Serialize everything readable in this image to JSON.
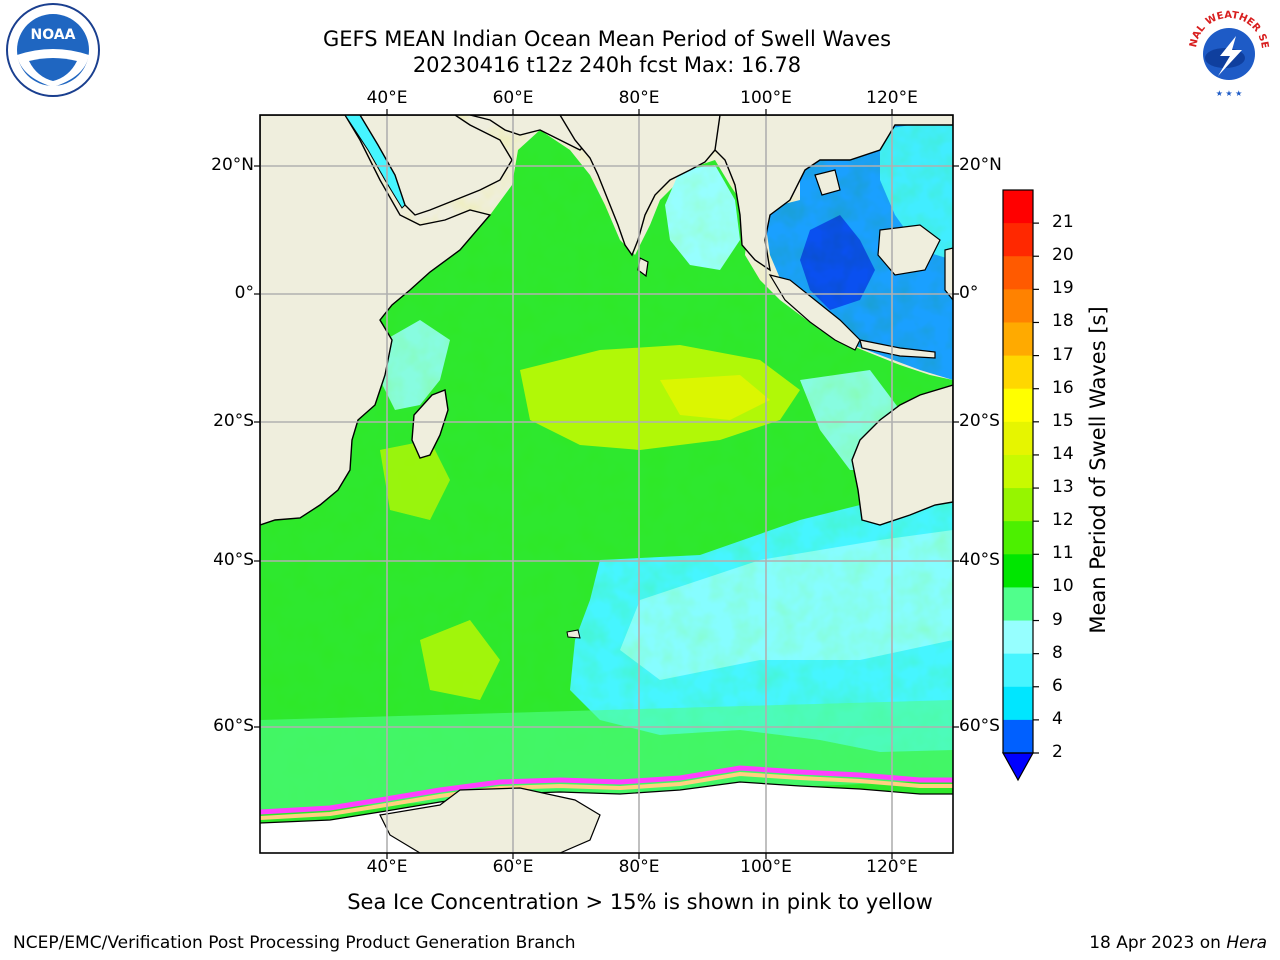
{
  "title": {
    "line1": "GEFS MEAN Indian Ocean Mean Period of Swell Waves",
    "line2": "20230416 t12z 240h fcst   Max: 16.78"
  },
  "logos": {
    "noaa_text": "NOAA",
    "nws_text": "NATIONAL WEATHER SERVICE"
  },
  "map": {
    "lon_labels": [
      "40°E",
      "60°E",
      "80°E",
      "100°E",
      "120°E"
    ],
    "lat_labels": [
      "20°N",
      "0°",
      "20°S",
      "40°S",
      "60°S"
    ],
    "lon_range": [
      20,
      130
    ],
    "lat_range": [
      -73,
      28
    ],
    "land_color": "#efeedd"
  },
  "colorbar": {
    "title": "Mean Period of Swell Waves [s]",
    "ticks": [
      "2",
      "4",
      "6",
      "8",
      "9",
      "10",
      "11",
      "12",
      "13",
      "14",
      "15",
      "16",
      "17",
      "18",
      "19",
      "20",
      "21"
    ],
    "colors": [
      "#0060ff",
      "#00e6ff",
      "#46f5ff",
      "#96ffff",
      "#50ff8c",
      "#00e600",
      "#4cf000",
      "#96f500",
      "#c8fa00",
      "#e6f500",
      "#ffff00",
      "#ffd700",
      "#ffaa00",
      "#ff8200",
      "#ff5a00",
      "#ff2800",
      "#ff0000"
    ],
    "under_color": "#0000ff"
  },
  "caption": "Sea Ice Concentration > 15% is shown in pink to yellow",
  "footer": {
    "credit": "NCEP/EMC/Verification Post Processing Product Generation Branch",
    "date": "18 Apr 2023 on ",
    "machine": "Hera"
  }
}
